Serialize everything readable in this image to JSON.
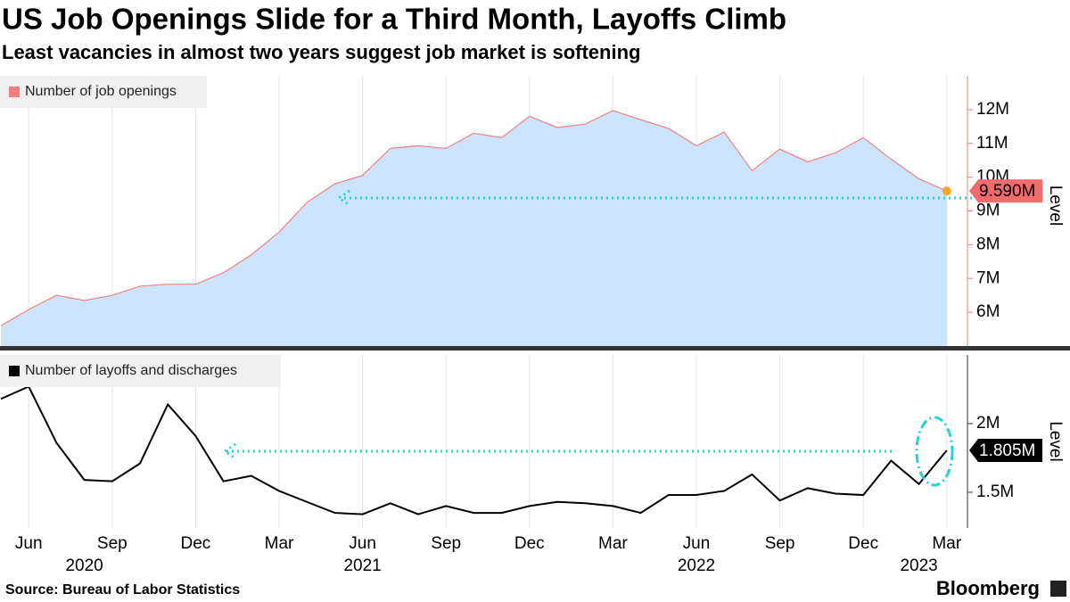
{
  "title": "US Job Openings Slide for a Third Month, Layoffs Climb",
  "subtitle": "Least vacancies in almost two years suggest job market is softening",
  "source": "Source: Bureau of Labor Statistics",
  "brand": "Bloomberg",
  "chart_data": [
    {
      "type": "area",
      "legend": "Number of job openings",
      "axis_label": "Level",
      "color": "#f08080",
      "fill": "#cce4fb",
      "last_point_color": "#f5a623",
      "x": [
        "2020-05",
        "2020-06",
        "2020-07",
        "2020-08",
        "2020-09",
        "2020-10",
        "2020-11",
        "2020-12",
        "2021-01",
        "2021-02",
        "2021-03",
        "2021-04",
        "2021-05",
        "2021-06",
        "2021-07",
        "2021-08",
        "2021-09",
        "2021-10",
        "2021-11",
        "2021-12",
        "2022-01",
        "2022-02",
        "2022-03",
        "2022-04",
        "2022-05",
        "2022-06",
        "2022-07",
        "2022-08",
        "2022-09",
        "2022-10",
        "2022-11",
        "2022-12",
        "2023-01",
        "2023-02",
        "2023-03"
      ],
      "values": [
        5.6,
        6.08,
        6.5,
        6.35,
        6.5,
        6.77,
        6.83,
        6.83,
        7.17,
        7.7,
        8.37,
        9.25,
        9.8,
        10.05,
        10.85,
        10.93,
        10.85,
        11.3,
        11.17,
        11.8,
        11.47,
        11.57,
        11.97,
        11.7,
        11.44,
        10.93,
        11.33,
        10.19,
        10.83,
        10.45,
        10.72,
        11.17,
        10.53,
        9.95,
        9.59
      ],
      "last_value_label": "9.590M",
      "ylim": [
        5,
        13
      ],
      "yticks": [
        {
          "value": 6,
          "label": "6M"
        },
        {
          "value": 7,
          "label": "7M"
        },
        {
          "value": 8,
          "label": "8M"
        },
        {
          "value": 9,
          "label": "9M"
        },
        {
          "value": 10,
          "label": "10M"
        },
        {
          "value": 11,
          "label": "11M"
        },
        {
          "value": 12,
          "label": "12M"
        }
      ],
      "grid": true
    },
    {
      "type": "line",
      "legend": "Number of layoffs and discharges",
      "axis_label": "Level",
      "color": "#000000",
      "x": [
        "2020-05",
        "2020-06",
        "2020-07",
        "2020-08",
        "2020-09",
        "2020-10",
        "2020-11",
        "2020-12",
        "2021-01",
        "2021-02",
        "2021-03",
        "2021-04",
        "2021-05",
        "2021-06",
        "2021-07",
        "2021-08",
        "2021-09",
        "2021-10",
        "2021-11",
        "2021-12",
        "2022-01",
        "2022-02",
        "2022-03",
        "2022-04",
        "2022-05",
        "2022-06",
        "2022-07",
        "2022-08",
        "2022-09",
        "2022-10",
        "2022-11",
        "2022-12",
        "2023-01",
        "2023-02",
        "2023-03"
      ],
      "values": [
        2.18,
        2.27,
        1.86,
        1.59,
        1.58,
        1.71,
        2.14,
        1.91,
        1.58,
        1.62,
        1.51,
        1.43,
        1.35,
        1.34,
        1.42,
        1.34,
        1.4,
        1.35,
        1.35,
        1.4,
        1.43,
        1.42,
        1.4,
        1.35,
        1.48,
        1.48,
        1.51,
        1.63,
        1.44,
        1.53,
        1.49,
        1.48,
        1.73,
        1.56,
        1.805
      ],
      "last_value_label": "1.805M",
      "ylim": [
        1.24,
        2.5
      ],
      "yticks": [
        {
          "value": 1.5,
          "label": "1.5M"
        },
        {
          "value": 2,
          "label": "2M"
        }
      ],
      "xticks": [
        {
          "value": "2020-06",
          "label": "Jun"
        },
        {
          "value": "2020-09",
          "label": "Sep"
        },
        {
          "value": "2020-12",
          "label": "Dec"
        },
        {
          "value": "2021-03",
          "label": "Mar"
        },
        {
          "value": "2021-06",
          "label": "Jun"
        },
        {
          "value": "2021-09",
          "label": "Sep"
        },
        {
          "value": "2021-12",
          "label": "Dec"
        },
        {
          "value": "2022-03",
          "label": "Mar"
        },
        {
          "value": "2022-06",
          "label": "Jun"
        },
        {
          "value": "2022-09",
          "label": "Sep"
        },
        {
          "value": "2022-12",
          "label": "Dec"
        },
        {
          "value": "2023-03",
          "label": "Mar"
        }
      ],
      "year_ticks": [
        {
          "value": "2020-08",
          "label": "2020"
        },
        {
          "value": "2021-06",
          "label": "2021"
        },
        {
          "value": "2022-06",
          "label": "2022"
        },
        {
          "value": "2023-02",
          "label": "2023"
        }
      ],
      "grid": true
    }
  ]
}
